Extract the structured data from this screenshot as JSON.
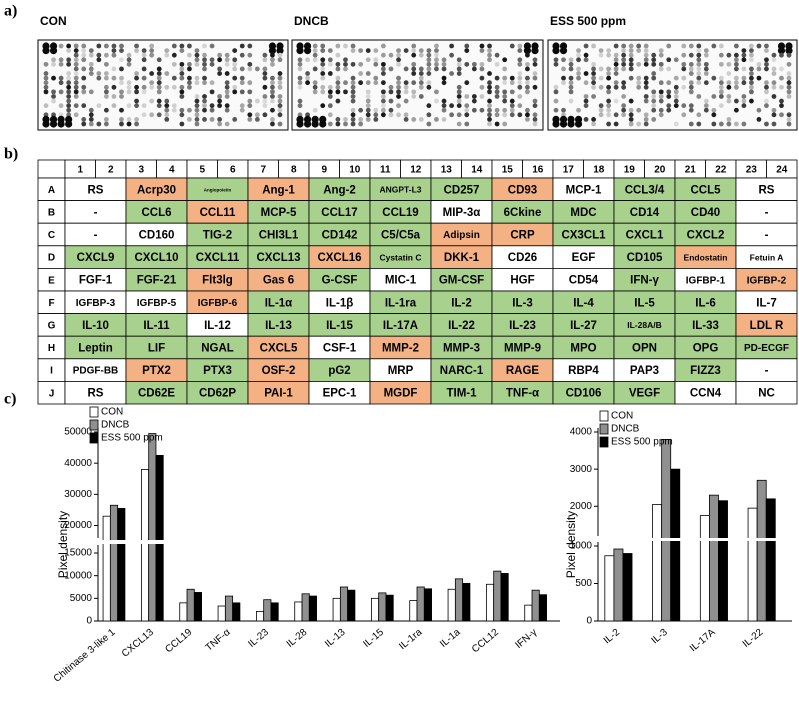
{
  "panel_a": {
    "label": "a)",
    "membranes": [
      "CON",
      "DNCB",
      "ESS 500 ppm"
    ]
  },
  "panel_b": {
    "label": "b)",
    "columns": [
      1,
      2,
      3,
      4,
      5,
      6,
      7,
      8,
      9,
      10,
      11,
      12,
      13,
      14,
      15,
      16,
      17,
      18,
      19,
      20,
      21,
      22,
      23,
      24
    ],
    "rows": [
      {
        "label": "A",
        "cells": [
          "RS",
          "Acrp30",
          "Angiopoietin",
          "Ang-1",
          "Ang-2",
          "ANGPT-L3",
          "CD257",
          "CD93",
          "MCP-1",
          "CCL3/4",
          "CCL5",
          "RS"
        ],
        "fills": [
          "#ffffff",
          "#f4b183",
          "#a9d18e",
          "#f4b183",
          "#a9d18e",
          "#a9d18e",
          "#a9d18e",
          "#f4b183",
          "#ffffff",
          "#a9d18e",
          "#a9d18e",
          "#ffffff"
        ]
      },
      {
        "label": "B",
        "cells": [
          "-",
          "CCL6",
          "CCL11",
          "MCP-5",
          "CCL17",
          "CCL19",
          "MIP-3α",
          "6Ckine",
          "MDC",
          "CD14",
          "CD40",
          "-"
        ],
        "fills": [
          "#ffffff",
          "#a9d18e",
          "#f4b183",
          "#a9d18e",
          "#a9d18e",
          "#a9d18e",
          "#ffffff",
          "#a9d18e",
          "#a9d18e",
          "#a9d18e",
          "#a9d18e",
          "#ffffff"
        ]
      },
      {
        "label": "C",
        "cells": [
          "-",
          "CD160",
          "TIG-2",
          "CHI3L1",
          "CD142",
          "C5/C5a",
          "Adipsin",
          "CRP",
          "CX3CL1",
          "CXCL1",
          "CXCL2",
          "-"
        ],
        "fills": [
          "#ffffff",
          "#ffffff",
          "#a9d18e",
          "#a9d18e",
          "#a9d18e",
          "#a9d18e",
          "#f4b183",
          "#f4b183",
          "#a9d18e",
          "#a9d18e",
          "#a9d18e",
          "#ffffff"
        ]
      },
      {
        "label": "D",
        "cells": [
          "CXCL9",
          "CXCL10",
          "CXCL11",
          "CXCL13",
          "CXCL16",
          "Cystatin C",
          "DKK-1",
          "CD26",
          "EGF",
          "CD105",
          "Endostatin",
          "Fetuin A"
        ],
        "fills": [
          "#a9d18e",
          "#a9d18e",
          "#a9d18e",
          "#a9d18e",
          "#f4b183",
          "#a9d18e",
          "#f4b183",
          "#ffffff",
          "#ffffff",
          "#a9d18e",
          "#f4b183",
          "#ffffff"
        ]
      },
      {
        "label": "E",
        "cells": [
          "FGF-1",
          "FGF-21",
          "Flt3lg",
          "Gas 6",
          "G-CSF",
          "MIC-1",
          "GM-CSF",
          "HGF",
          "CD54",
          "IFN-γ",
          "IGFBP-1",
          "IGFBP-2"
        ],
        "fills": [
          "#ffffff",
          "#a9d18e",
          "#f4b183",
          "#f4b183",
          "#a9d18e",
          "#ffffff",
          "#a9d18e",
          "#ffffff",
          "#ffffff",
          "#a9d18e",
          "#ffffff",
          "#f4b183"
        ]
      },
      {
        "label": "F",
        "cells": [
          "IGFBP-3",
          "IGFBP-5",
          "IGFBP-6",
          "IL-1α",
          "IL-1β",
          "IL-1ra",
          "IL-2",
          "IL-3",
          "IL-4",
          "IL-5",
          "IL-6",
          "IL-7"
        ],
        "fills": [
          "#ffffff",
          "#ffffff",
          "#f4b183",
          "#a9d18e",
          "#ffffff",
          "#a9d18e",
          "#a9d18e",
          "#a9d18e",
          "#a9d18e",
          "#a9d18e",
          "#a9d18e",
          "#ffffff"
        ]
      },
      {
        "label": "G",
        "cells": [
          "IL-10",
          "IL-11",
          "IL-12",
          "IL-13",
          "IL-15",
          "IL-17A",
          "IL-22",
          "IL-23",
          "IL-27",
          "IL-28A/B",
          "IL-33",
          "LDL R"
        ],
        "fills": [
          "#a9d18e",
          "#a9d18e",
          "#ffffff",
          "#a9d18e",
          "#a9d18e",
          "#a9d18e",
          "#a9d18e",
          "#a9d18e",
          "#a9d18e",
          "#a9d18e",
          "#a9d18e",
          "#f4b183"
        ]
      },
      {
        "label": "H",
        "cells": [
          "Leptin",
          "LIF",
          "NGAL",
          "CXCL5",
          "CSF-1",
          "MMP-2",
          "MMP-3",
          "MMP-9",
          "MPO",
          "OPN",
          "OPG",
          "PD-ECGF"
        ],
        "fills": [
          "#a9d18e",
          "#a9d18e",
          "#a9d18e",
          "#f4b183",
          "#ffffff",
          "#f4b183",
          "#a9d18e",
          "#a9d18e",
          "#a9d18e",
          "#a9d18e",
          "#a9d18e",
          "#a9d18e"
        ]
      },
      {
        "label": "I",
        "cells": [
          "PDGF-BB",
          "PTX2",
          "PTX3",
          "OSF-2",
          "pG2",
          "MRP",
          "NARC-1",
          "RAGE",
          "RBP4",
          "PAP3",
          "FIZZ3",
          "-"
        ],
        "fills": [
          "#ffffff",
          "#f4b183",
          "#a9d18e",
          "#f4b183",
          "#a9d18e",
          "#ffffff",
          "#a9d18e",
          "#f4b183",
          "#ffffff",
          "#ffffff",
          "#a9d18e",
          "#ffffff"
        ]
      },
      {
        "label": "J",
        "cells": [
          "RS",
          "CD62E",
          "CD62P",
          "PAI-1",
          "EPC-1",
          "MGDF",
          "TIM-1",
          "TNF-α",
          "CD106",
          "VEGF",
          "CCN4",
          "NC"
        ],
        "fills": [
          "#ffffff",
          "#a9d18e",
          "#a9d18e",
          "#f4b183",
          "#ffffff",
          "#f4b183",
          "#a9d18e",
          "#a9d18e",
          "#a9d18e",
          "#a9d18e",
          "#ffffff",
          "#ffffff"
        ]
      }
    ]
  },
  "panel_c": {
    "label": "c)"
  },
  "chart_data": [
    {
      "type": "bar",
      "y_label": "Pixel density",
      "categories": [
        "Chitinase 3-like 1",
        "CXCL13",
        "CCL19",
        "TNF-α",
        "IL-23",
        "IL-28",
        "IL-13",
        "IL-15",
        "IL-1ra",
        "IL-1a",
        "CCL12",
        "IFN-γ"
      ],
      "series": [
        {
          "name": "CON",
          "color": "#ffffff",
          "values": [
            23000,
            38000,
            4000,
            3300,
            2100,
            4200,
            5000,
            5000,
            4500,
            7000,
            8100,
            3500
          ]
        },
        {
          "name": "DNCB",
          "color": "#909090",
          "values": [
            26500,
            49500,
            7000,
            5500,
            4700,
            6000,
            7500,
            6200,
            7500,
            9300,
            11000,
            6800
          ]
        },
        {
          "name": "ESS 500 ppm",
          "color": "#000000",
          "values": [
            25500,
            42500,
            6300,
            4000,
            4000,
            5500,
            6800,
            5700,
            7100,
            8300,
            10500,
            5800
          ]
        }
      ],
      "ylim": [
        0,
        50000
      ],
      "axis_break": [
        15000,
        16000
      ],
      "yticks": [
        0,
        5000,
        10000,
        15000,
        20000,
        30000,
        40000,
        50000
      ]
    },
    {
      "type": "bar",
      "y_label": "Pixel density",
      "categories": [
        "IL-2",
        "IL-3",
        "IL-17A",
        "IL-22"
      ],
      "series": [
        {
          "name": "CON",
          "color": "#ffffff",
          "values": [
            870,
            2050,
            1750,
            1950
          ]
        },
        {
          "name": "DNCB",
          "color": "#909090",
          "values": [
            960,
            3800,
            2300,
            2700
          ]
        },
        {
          "name": "ESS 500 ppm",
          "color": "#000000",
          "values": [
            900,
            3000,
            2150,
            2200
          ]
        }
      ],
      "ylim": [
        0,
        4000
      ],
      "axis_break": [
        1000,
        1200
      ],
      "yticks": [
        0,
        500,
        1000,
        2000,
        3000,
        4000
      ]
    }
  ]
}
